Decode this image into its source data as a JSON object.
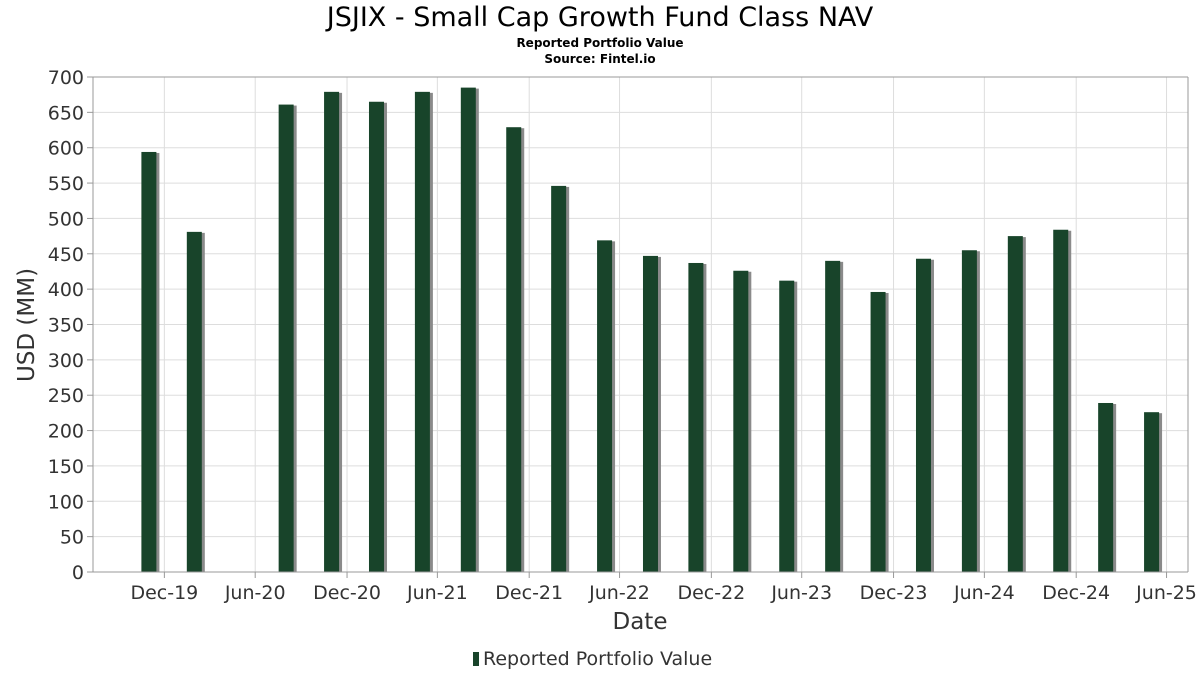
{
  "chart_data": {
    "type": "bar",
    "title": "JSJIX - Small Cap Growth Fund Class NAV",
    "subtitle": "Reported Portfolio Value",
    "source": "Source: Fintel.io",
    "xlabel": "Date",
    "ylabel": "USD (MM)",
    "ylim": [
      0,
      700
    ],
    "y_ticks": [
      0,
      50,
      100,
      150,
      200,
      250,
      300,
      350,
      400,
      450,
      500,
      550,
      600,
      650,
      700
    ],
    "x_ticks": [
      {
        "label": "Dec-19",
        "date": "2019-12-31"
      },
      {
        "label": "Jun-20",
        "date": "2020-06-30"
      },
      {
        "label": "Dec-20",
        "date": "2020-12-31"
      },
      {
        "label": "Jun-21",
        "date": "2021-06-30"
      },
      {
        "label": "Dec-21",
        "date": "2021-12-31"
      },
      {
        "label": "Jun-22",
        "date": "2022-06-30"
      },
      {
        "label": "Dec-22",
        "date": "2022-12-31"
      },
      {
        "label": "Jun-23",
        "date": "2023-06-30"
      },
      {
        "label": "Dec-23",
        "date": "2023-12-31"
      },
      {
        "label": "Jun-24",
        "date": "2024-06-30"
      },
      {
        "label": "Dec-24",
        "date": "2024-12-31"
      },
      {
        "label": "Jun-25",
        "date": "2025-06-30"
      }
    ],
    "x_range": [
      "2019-08-10",
      "2025-08-12"
    ],
    "grid": true,
    "legend_position": "bottom-center",
    "colors": {
      "bar": "#18442a",
      "shadow": "#8a8a8a",
      "grid": "#dddddd",
      "axis": "#999999"
    },
    "series": [
      {
        "name": "Reported Portfolio Value",
        "points": [
          {
            "date": "2019-11-30",
            "value": 594
          },
          {
            "date": "2020-02-29",
            "value": 481
          },
          {
            "date": "2020-08-31",
            "value": 661
          },
          {
            "date": "2020-11-30",
            "value": 679
          },
          {
            "date": "2021-02-28",
            "value": 665
          },
          {
            "date": "2021-05-31",
            "value": 679
          },
          {
            "date": "2021-08-31",
            "value": 685
          },
          {
            "date": "2021-11-30",
            "value": 629
          },
          {
            "date": "2022-02-28",
            "value": 546
          },
          {
            "date": "2022-05-31",
            "value": 469
          },
          {
            "date": "2022-08-31",
            "value": 447
          },
          {
            "date": "2022-11-30",
            "value": 437
          },
          {
            "date": "2023-02-28",
            "value": 426
          },
          {
            "date": "2023-05-31",
            "value": 412
          },
          {
            "date": "2023-08-31",
            "value": 440
          },
          {
            "date": "2023-11-30",
            "value": 396
          },
          {
            "date": "2024-02-29",
            "value": 443
          },
          {
            "date": "2024-05-31",
            "value": 455
          },
          {
            "date": "2024-08-31",
            "value": 475
          },
          {
            "date": "2024-11-30",
            "value": 484
          },
          {
            "date": "2025-02-28",
            "value": 239
          },
          {
            "date": "2025-05-31",
            "value": 226
          }
        ]
      }
    ]
  }
}
